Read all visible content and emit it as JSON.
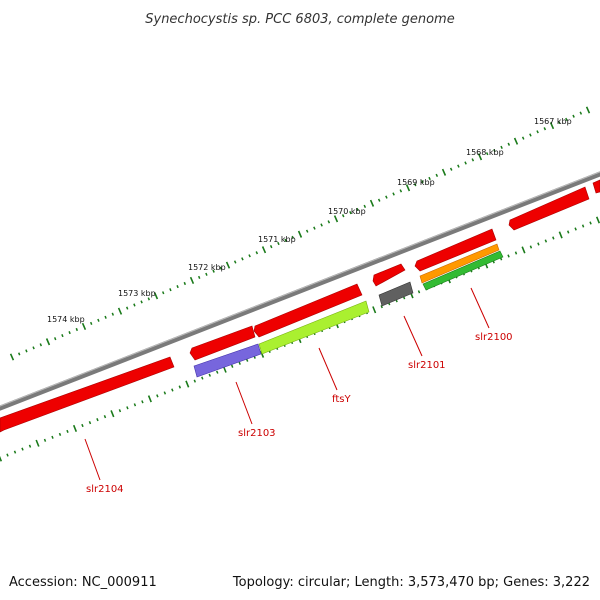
{
  "title": "Synechocystis sp. PCC 6803, complete genome",
  "footer": {
    "accession": "Accession: NC_000911",
    "summary": "Topology: circular; Length: 3,573,470 bp; Genes: 3,222"
  },
  "colors": {
    "backbone": "#7a7a7a",
    "forward_gene": "#ee0000",
    "tick": "#1a7a1a",
    "label": "#cc0000",
    "slr2103_feature": "#7766dd",
    "ftsY_feature": "#aaf030",
    "slr2101_feature": "#606060",
    "slr2100_feature_1": "#ff9900",
    "slr2100_feature_2": "#33bb33"
  },
  "kbp_labels": [
    "1574 kbp",
    "1573 kbp",
    "1572 kbp",
    "1571 kbp",
    "1570 kbp",
    "1569 kbp",
    "1568 kbp",
    "1567 kbp"
  ],
  "genes": [
    "slr2104",
    "slr2103",
    "ftsY",
    "slr2101",
    "slr2100"
  ]
}
